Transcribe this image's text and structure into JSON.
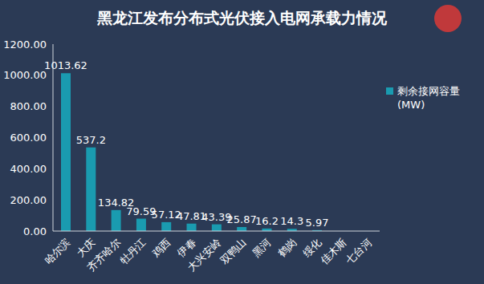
{
  "chart_data": {
    "type": "bar",
    "title": "黑龙江发布分布式光伏接入电网承载力情况",
    "categories": [
      "哈尔滨",
      "大庆",
      "齐齐哈尔",
      "牡丹江",
      "鸡西",
      "伊春",
      "大兴安岭",
      "双鸭山",
      "黑河",
      "鹤岗",
      "绥化",
      "佳木斯",
      "七台河"
    ],
    "series": [
      {
        "name": "剩余接网容量(MW)",
        "color": "#1a9bb0",
        "values": [
          1013.62,
          537.2,
          134.82,
          79.59,
          57.12,
          47.81,
          43.39,
          25.87,
          16.2,
          14.3,
          5.97,
          0,
          0
        ]
      }
    ],
    "ylim": [
      0,
      1200
    ],
    "yticks": [
      {
        "value": 0,
        "label": "0.00"
      },
      {
        "value": 200,
        "label": "200.00"
      },
      {
        "value": 400,
        "label": "400.00"
      },
      {
        "value": 600,
        "label": "600.00"
      },
      {
        "value": 800,
        "label": "800.00"
      },
      {
        "value": 1000,
        "label": "1000.00"
      },
      {
        "value": 1200,
        "label": "1200.00"
      }
    ],
    "grid": false,
    "legend": "right",
    "data_labels": true
  }
}
